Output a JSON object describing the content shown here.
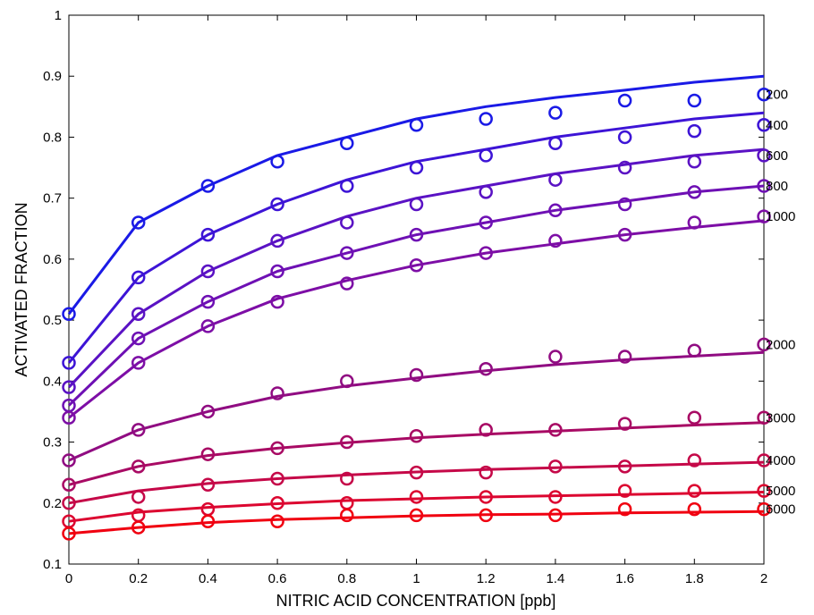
{
  "chart_data": {
    "type": "line",
    "title": "",
    "xlabel": "NITRIC ACID CONCENTRATION [ppb]",
    "ylabel": "ACTIVATED FRACTION",
    "xlim": [
      0,
      2
    ],
    "ylim": [
      0.1,
      1
    ],
    "xticks": [
      "0",
      "0.2",
      "0.4",
      "0.6",
      "0.8",
      "1",
      "1.2",
      "1.4",
      "1.6",
      "1.8",
      "2"
    ],
    "yticks": [
      "0.1",
      "0.2",
      "0.3",
      "0.4",
      "0.5",
      "0.6",
      "0.7",
      "0.8",
      "0.9",
      "1"
    ],
    "grid": false,
    "x": [
      0,
      0.2,
      0.4,
      0.6,
      0.8,
      1.0,
      1.2,
      1.4,
      1.6,
      1.8,
      2.0
    ],
    "series": [
      {
        "name": "200",
        "color": "#1a1ae6",
        "line": [
          0.51,
          0.66,
          0.72,
          0.77,
          0.8,
          0.83,
          0.85,
          0.865,
          0.877,
          0.89,
          0.9
        ],
        "markers": [
          0.51,
          0.66,
          0.72,
          0.76,
          0.79,
          0.82,
          0.83,
          0.84,
          0.86,
          0.86,
          0.87
        ]
      },
      {
        "name": "400",
        "color": "#3d14d6",
        "line": [
          0.43,
          0.57,
          0.64,
          0.69,
          0.73,
          0.76,
          0.78,
          0.8,
          0.815,
          0.83,
          0.84
        ],
        "markers": [
          0.43,
          0.57,
          0.64,
          0.69,
          0.72,
          0.75,
          0.77,
          0.79,
          0.8,
          0.81,
          0.82
        ]
      },
      {
        "name": "600",
        "color": "#5a12c4",
        "line": [
          0.39,
          0.51,
          0.58,
          0.63,
          0.67,
          0.7,
          0.72,
          0.74,
          0.755,
          0.77,
          0.78
        ],
        "markers": [
          0.39,
          0.51,
          0.58,
          0.63,
          0.66,
          0.69,
          0.71,
          0.73,
          0.75,
          0.76,
          0.77
        ]
      },
      {
        "name": "800",
        "color": "#6e10b4",
        "line": [
          0.36,
          0.47,
          0.53,
          0.58,
          0.61,
          0.64,
          0.66,
          0.68,
          0.695,
          0.71,
          0.72
        ],
        "markers": [
          0.36,
          0.47,
          0.53,
          0.58,
          0.61,
          0.64,
          0.66,
          0.68,
          0.69,
          0.71,
          0.72
        ]
      },
      {
        "name": "1000",
        "color": "#7d0ea6",
        "line": [
          0.34,
          0.43,
          0.49,
          0.535,
          0.565,
          0.59,
          0.61,
          0.625,
          0.64,
          0.652,
          0.663
        ],
        "markers": [
          0.34,
          0.43,
          0.49,
          0.53,
          0.56,
          0.59,
          0.61,
          0.63,
          0.64,
          0.66,
          0.67
        ]
      },
      {
        "name": "2000",
        "color": "#900c82",
        "line": [
          0.27,
          0.32,
          0.35,
          0.375,
          0.392,
          0.405,
          0.417,
          0.427,
          0.435,
          0.441,
          0.447
        ],
        "markers": [
          0.27,
          0.32,
          0.35,
          0.38,
          0.4,
          0.41,
          0.42,
          0.44,
          0.44,
          0.45,
          0.46
        ]
      },
      {
        "name": "3000",
        "color": "#a80a64",
        "line": [
          0.23,
          0.26,
          0.278,
          0.29,
          0.299,
          0.307,
          0.313,
          0.318,
          0.323,
          0.328,
          0.332
        ],
        "markers": [
          0.23,
          0.26,
          0.28,
          0.29,
          0.3,
          0.31,
          0.32,
          0.32,
          0.33,
          0.34,
          0.34
        ]
      },
      {
        "name": "4000",
        "color": "#c50848",
        "line": [
          0.2,
          0.22,
          0.232,
          0.24,
          0.246,
          0.251,
          0.255,
          0.258,
          0.261,
          0.264,
          0.267
        ],
        "markers": [
          0.2,
          0.21,
          0.23,
          0.24,
          0.24,
          0.25,
          0.25,
          0.26,
          0.26,
          0.27,
          0.27
        ]
      },
      {
        "name": "5000",
        "color": "#dc0630",
        "line": [
          0.17,
          0.185,
          0.193,
          0.199,
          0.204,
          0.207,
          0.21,
          0.212,
          0.214,
          0.216,
          0.218
        ],
        "markers": [
          0.17,
          0.18,
          0.19,
          0.2,
          0.2,
          0.21,
          0.21,
          0.21,
          0.22,
          0.22,
          0.22
        ]
      },
      {
        "name": "6000",
        "color": "#f00010",
        "line": [
          0.15,
          0.16,
          0.168,
          0.173,
          0.176,
          0.179,
          0.181,
          0.182,
          0.184,
          0.185,
          0.186
        ],
        "markers": [
          0.15,
          0.16,
          0.17,
          0.17,
          0.18,
          0.18,
          0.18,
          0.18,
          0.19,
          0.19,
          0.19
        ]
      }
    ]
  }
}
